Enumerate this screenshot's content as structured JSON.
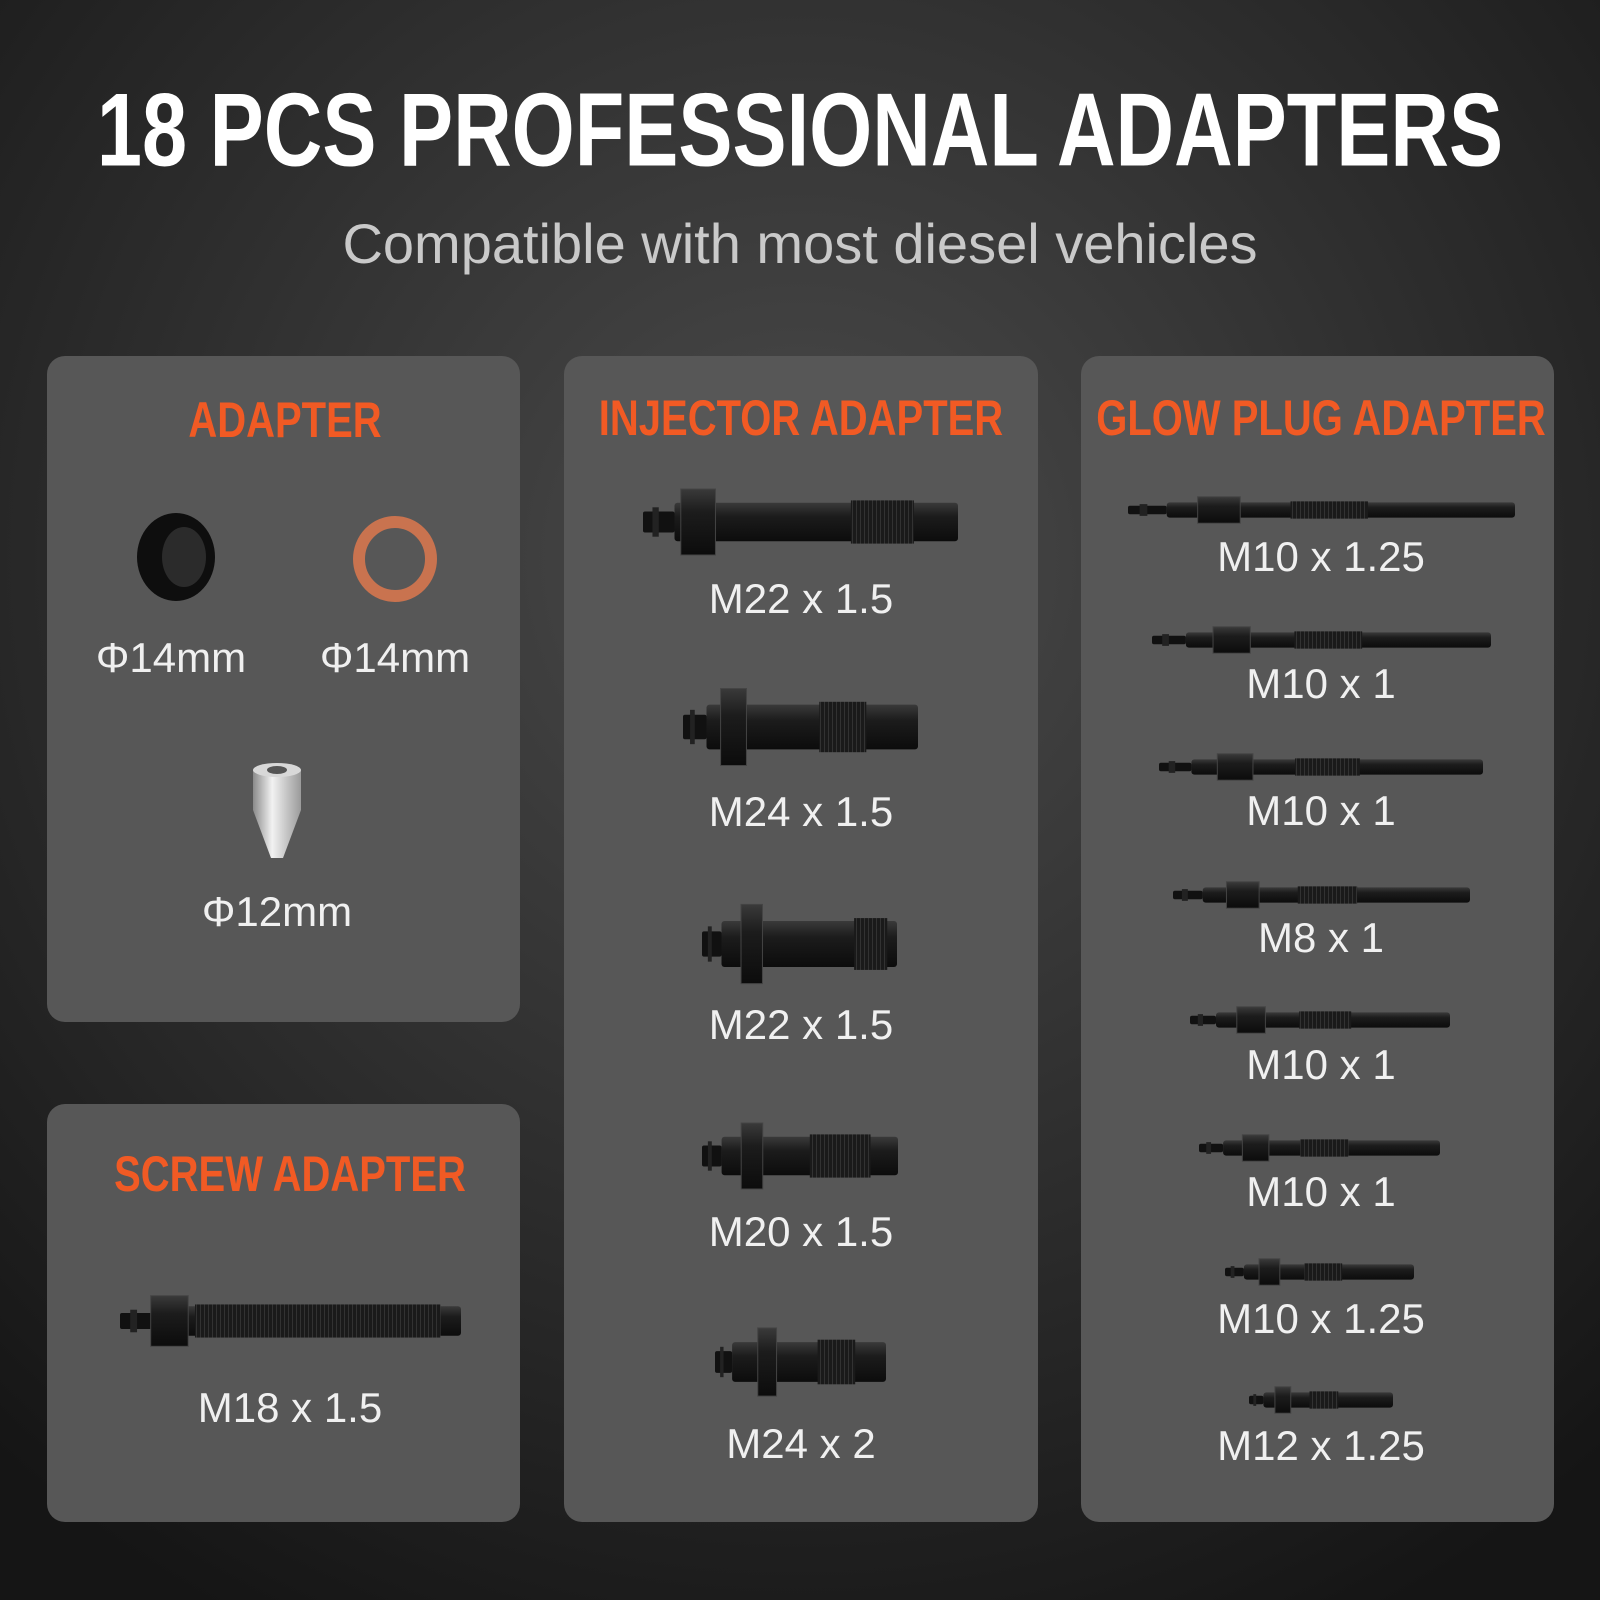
{
  "header": {
    "title": "18 PCS PROFESSIONAL ADAPTERS",
    "subtitle": "Compatible with most diesel vehicles"
  },
  "panels": [
    {
      "title": "ADAPTER",
      "items": [
        "Φ14mm",
        "Φ14mm",
        "Φ12mm"
      ]
    },
    {
      "title": "SCREW ADAPTER",
      "items": [
        "M18 x 1.5"
      ]
    },
    {
      "title": "INJECTOR ADAPTER",
      "items": [
        "M22 x 1.5",
        "M24 x 1.5",
        "M22 x 1.5",
        "M20 x 1.5",
        "M24 x 2"
      ]
    },
    {
      "title": "GLOW PLUG ADAPTER",
      "items": [
        "M10 x 1.25",
        "M10 x 1",
        "M10 x 1",
        "M8 x 1",
        "M10 x 1",
        "M10 x 1",
        "M10 x 1.25",
        "M12 x 1.25"
      ]
    }
  ]
}
